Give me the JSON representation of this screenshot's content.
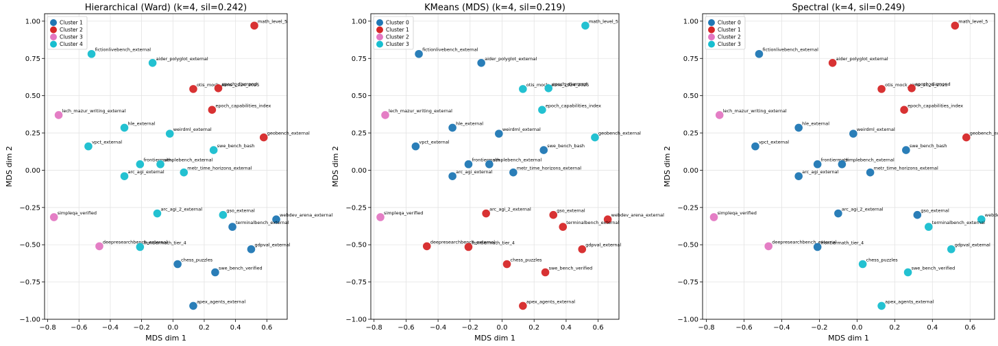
{
  "colors": {
    "blue": "#1f77b4",
    "red": "#d62728",
    "pink": "#e377c2",
    "cyan": "#17becf"
  },
  "chart_data": [
    {
      "type": "scatter",
      "title": "Hierarchical (Ward) (k=4, sil=0.242)",
      "xlabel": "MDS dim 1",
      "ylabel": "MDS dim 2",
      "xlim": [
        -0.82,
        0.73
      ],
      "ylim": [
        -1.0,
        1.05
      ],
      "xticks": [
        "−0.8",
        "−0.6",
        "−0.4",
        "−0.2",
        "0.0",
        "0.2",
        "0.4",
        "0.6"
      ],
      "yticks": [
        "−1.00",
        "−0.75",
        "−0.50",
        "−0.25",
        "0.00",
        "0.25",
        "0.50",
        "0.75",
        "1.00"
      ],
      "grid": true,
      "legend_position": "top-left",
      "legend": [
        {
          "label": "Cluster 1",
          "color": "blue"
        },
        {
          "label": "Cluster 2",
          "color": "red"
        },
        {
          "label": "Cluster 3",
          "color": "pink"
        },
        {
          "label": "Cluster 4",
          "color": "cyan"
        }
      ],
      "points": [
        {
          "label": "math_level_5",
          "x": 0.52,
          "y": 0.97,
          "color": "red"
        },
        {
          "label": "fictionlivebench_external",
          "x": -0.52,
          "y": 0.78,
          "color": "cyan"
        },
        {
          "label": "aider_polyglot_external",
          "x": -0.13,
          "y": 0.72,
          "color": "cyan"
        },
        {
          "label": "otis_mock_aime_2024_2025",
          "x": 0.13,
          "y": 0.545,
          "color": "red"
        },
        {
          "label": "epoch_diamond",
          "x": 0.29,
          "y": 0.55,
          "color": "red"
        },
        {
          "label": "lech_mazur_writing_external",
          "x": -0.73,
          "y": 0.37,
          "color": "pink"
        },
        {
          "label": "epoch_capabilities_index",
          "x": 0.25,
          "y": 0.405,
          "color": "red"
        },
        {
          "label": "hle_external",
          "x": -0.31,
          "y": 0.285,
          "color": "cyan"
        },
        {
          "label": "weirdml_external",
          "x": -0.02,
          "y": 0.245,
          "color": "cyan"
        },
        {
          "label": "geobench_external",
          "x": 0.58,
          "y": 0.22,
          "color": "red"
        },
        {
          "label": "vpct_external",
          "x": -0.54,
          "y": 0.16,
          "color": "cyan"
        },
        {
          "label": "swe_bench_bash",
          "x": 0.26,
          "y": 0.135,
          "color": "cyan"
        },
        {
          "label": "frontiermath",
          "x": -0.21,
          "y": 0.04,
          "color": "cyan"
        },
        {
          "label": "simplebench_external",
          "x": -0.08,
          "y": 0.04,
          "color": "cyan"
        },
        {
          "label": "metr_time_horizons_external",
          "x": 0.07,
          "y": -0.015,
          "color": "cyan"
        },
        {
          "label": "arc_agi_external",
          "x": -0.31,
          "y": -0.04,
          "color": "cyan"
        },
        {
          "label": "simpleqa_verified",
          "x": -0.76,
          "y": -0.315,
          "color": "pink"
        },
        {
          "label": "arc_agi_2_external",
          "x": -0.1,
          "y": -0.29,
          "color": "cyan"
        },
        {
          "label": "gso_external",
          "x": 0.32,
          "y": -0.3,
          "color": "cyan"
        },
        {
          "label": "webdev_arena_external",
          "x": 0.66,
          "y": -0.33,
          "color": "blue"
        },
        {
          "label": "terminalbench_external",
          "x": 0.38,
          "y": -0.38,
          "color": "blue"
        },
        {
          "label": "deepresearchbench_external",
          "x": -0.47,
          "y": -0.51,
          "color": "pink"
        },
        {
          "label": "frontiermath_tier_4",
          "x": -0.21,
          "y": -0.515,
          "color": "cyan"
        },
        {
          "label": "gdpval_external",
          "x": 0.5,
          "y": -0.53,
          "color": "blue"
        },
        {
          "label": "chess_puzzles",
          "x": 0.03,
          "y": -0.63,
          "color": "blue"
        },
        {
          "label": "swe_bench_verified",
          "x": 0.27,
          "y": -0.685,
          "color": "blue"
        },
        {
          "label": "apex_agents_external",
          "x": 0.13,
          "y": -0.91,
          "color": "blue"
        }
      ]
    },
    {
      "type": "scatter",
      "title": "KMeans (MDS) (k=4, sil=0.219)",
      "xlabel": "MDS dim 1",
      "ylabel": "MDS dim 2",
      "xlim": [
        -0.82,
        0.73
      ],
      "ylim": [
        -1.0,
        1.05
      ],
      "xticks": [
        "−0.8",
        "−0.6",
        "−0.4",
        "−0.2",
        "0.0",
        "0.2",
        "0.4",
        "0.6"
      ],
      "yticks": [
        "−1.00",
        "−0.75",
        "−0.50",
        "−0.25",
        "0.00",
        "0.25",
        "0.50",
        "0.75",
        "1.00"
      ],
      "grid": true,
      "legend_position": "top-left",
      "legend": [
        {
          "label": "Cluster 0",
          "color": "blue"
        },
        {
          "label": "Cluster 1",
          "color": "red"
        },
        {
          "label": "Cluster 2",
          "color": "pink"
        },
        {
          "label": "Cluster 3",
          "color": "cyan"
        }
      ],
      "points": [
        {
          "label": "math_level_5",
          "x": 0.52,
          "y": 0.97,
          "color": "cyan"
        },
        {
          "label": "fictionlivebench_external",
          "x": -0.52,
          "y": 0.78,
          "color": "blue"
        },
        {
          "label": "aider_polyglot_external",
          "x": -0.13,
          "y": 0.72,
          "color": "blue"
        },
        {
          "label": "otis_mock_aime_2024_2025",
          "x": 0.13,
          "y": 0.545,
          "color": "cyan"
        },
        {
          "label": "epoch_diamond",
          "x": 0.29,
          "y": 0.55,
          "color": "cyan"
        },
        {
          "label": "lech_mazur_writing_external",
          "x": -0.73,
          "y": 0.37,
          "color": "pink"
        },
        {
          "label": "epoch_capabilities_index",
          "x": 0.25,
          "y": 0.405,
          "color": "cyan"
        },
        {
          "label": "hle_external",
          "x": -0.31,
          "y": 0.285,
          "color": "blue"
        },
        {
          "label": "weirdml_external",
          "x": -0.02,
          "y": 0.245,
          "color": "blue"
        },
        {
          "label": "geobench_external",
          "x": 0.58,
          "y": 0.22,
          "color": "cyan"
        },
        {
          "label": "vpct_external",
          "x": -0.54,
          "y": 0.16,
          "color": "blue"
        },
        {
          "label": "swe_bench_bash",
          "x": 0.26,
          "y": 0.135,
          "color": "blue"
        },
        {
          "label": "frontiermath",
          "x": -0.21,
          "y": 0.04,
          "color": "blue"
        },
        {
          "label": "simplebench_external",
          "x": -0.08,
          "y": 0.04,
          "color": "blue"
        },
        {
          "label": "metr_time_horizons_external",
          "x": 0.07,
          "y": -0.015,
          "color": "blue"
        },
        {
          "label": "arc_agi_external",
          "x": -0.31,
          "y": -0.04,
          "color": "blue"
        },
        {
          "label": "simpleqa_verified",
          "x": -0.76,
          "y": -0.315,
          "color": "pink"
        },
        {
          "label": "arc_agi_2_external",
          "x": -0.1,
          "y": -0.29,
          "color": "red"
        },
        {
          "label": "gso_external",
          "x": 0.32,
          "y": -0.3,
          "color": "red"
        },
        {
          "label": "webdev_arena_external",
          "x": 0.66,
          "y": -0.33,
          "color": "red"
        },
        {
          "label": "terminalbench_external",
          "x": 0.38,
          "y": -0.38,
          "color": "red"
        },
        {
          "label": "deepresearchbench_external",
          "x": -0.47,
          "y": -0.51,
          "color": "red"
        },
        {
          "label": "frontiermath_tier_4",
          "x": -0.21,
          "y": -0.515,
          "color": "red"
        },
        {
          "label": "gdpval_external",
          "x": 0.5,
          "y": -0.53,
          "color": "red"
        },
        {
          "label": "chess_puzzles",
          "x": 0.03,
          "y": -0.63,
          "color": "red"
        },
        {
          "label": "swe_bench_verified",
          "x": 0.27,
          "y": -0.685,
          "color": "red"
        },
        {
          "label": "apex_agents_external",
          "x": 0.13,
          "y": -0.91,
          "color": "red"
        }
      ]
    },
    {
      "type": "scatter",
      "title": "Spectral (k=4, sil=0.249)",
      "xlabel": "MDS dim 1",
      "ylabel": "MDS dim 2",
      "xlim": [
        -0.82,
        0.73
      ],
      "ylim": [
        -1.0,
        1.05
      ],
      "xticks": [
        "−0.8",
        "−0.6",
        "−0.4",
        "−0.2",
        "0.0",
        "0.2",
        "0.4",
        "0.6"
      ],
      "yticks": [
        "−1.00",
        "−0.75",
        "−0.50",
        "−0.25",
        "0.00",
        "0.25",
        "0.50",
        "0.75",
        "1.00"
      ],
      "grid": true,
      "legend_position": "top-left",
      "legend": [
        {
          "label": "Cluster 0",
          "color": "blue"
        },
        {
          "label": "Cluster 1",
          "color": "red"
        },
        {
          "label": "Cluster 2",
          "color": "pink"
        },
        {
          "label": "Cluster 3",
          "color": "cyan"
        }
      ],
      "points": [
        {
          "label": "math_level_5",
          "x": 0.52,
          "y": 0.97,
          "color": "red"
        },
        {
          "label": "fictionlivebench_external",
          "x": -0.52,
          "y": 0.78,
          "color": "blue"
        },
        {
          "label": "aider_polyglot_external",
          "x": -0.13,
          "y": 0.72,
          "color": "red"
        },
        {
          "label": "otis_mock_aime_2024_2025",
          "x": 0.13,
          "y": 0.545,
          "color": "red"
        },
        {
          "label": "epoch_diamond",
          "x": 0.29,
          "y": 0.55,
          "color": "red"
        },
        {
          "label": "lech_mazur_writing_external",
          "x": -0.73,
          "y": 0.37,
          "color": "pink"
        },
        {
          "label": "epoch_capabilities_index",
          "x": 0.25,
          "y": 0.405,
          "color": "red"
        },
        {
          "label": "hle_external",
          "x": -0.31,
          "y": 0.285,
          "color": "blue"
        },
        {
          "label": "weirdml_external",
          "x": -0.02,
          "y": 0.245,
          "color": "blue"
        },
        {
          "label": "geobench_external",
          "x": 0.58,
          "y": 0.22,
          "color": "red"
        },
        {
          "label": "vpct_external",
          "x": -0.54,
          "y": 0.16,
          "color": "blue"
        },
        {
          "label": "swe_bench_bash",
          "x": 0.26,
          "y": 0.135,
          "color": "blue"
        },
        {
          "label": "frontiermath",
          "x": -0.21,
          "y": 0.04,
          "color": "blue"
        },
        {
          "label": "simplebench_external",
          "x": -0.08,
          "y": 0.04,
          "color": "blue"
        },
        {
          "label": "metr_time_horizons_external",
          "x": 0.07,
          "y": -0.015,
          "color": "blue"
        },
        {
          "label": "arc_agi_external",
          "x": -0.31,
          "y": -0.04,
          "color": "blue"
        },
        {
          "label": "simpleqa_verified",
          "x": -0.76,
          "y": -0.315,
          "color": "pink"
        },
        {
          "label": "arc_agi_2_external",
          "x": -0.1,
          "y": -0.29,
          "color": "blue"
        },
        {
          "label": "gso_external",
          "x": 0.32,
          "y": -0.3,
          "color": "blue"
        },
        {
          "label": "webdev_arena_external",
          "x": 0.66,
          "y": -0.33,
          "color": "cyan"
        },
        {
          "label": "terminalbench_external",
          "x": 0.38,
          "y": -0.38,
          "color": "cyan"
        },
        {
          "label": "deepresearchbench_external",
          "x": -0.47,
          "y": -0.51,
          "color": "pink"
        },
        {
          "label": "frontiermath_tier_4",
          "x": -0.21,
          "y": -0.515,
          "color": "blue"
        },
        {
          "label": "gdpval_external",
          "x": 0.5,
          "y": -0.53,
          "color": "cyan"
        },
        {
          "label": "chess_puzzles",
          "x": 0.03,
          "y": -0.63,
          "color": "cyan"
        },
        {
          "label": "swe_bench_verified",
          "x": 0.27,
          "y": -0.685,
          "color": "cyan"
        },
        {
          "label": "apex_agents_external",
          "x": 0.13,
          "y": -0.91,
          "color": "cyan"
        }
      ]
    }
  ]
}
